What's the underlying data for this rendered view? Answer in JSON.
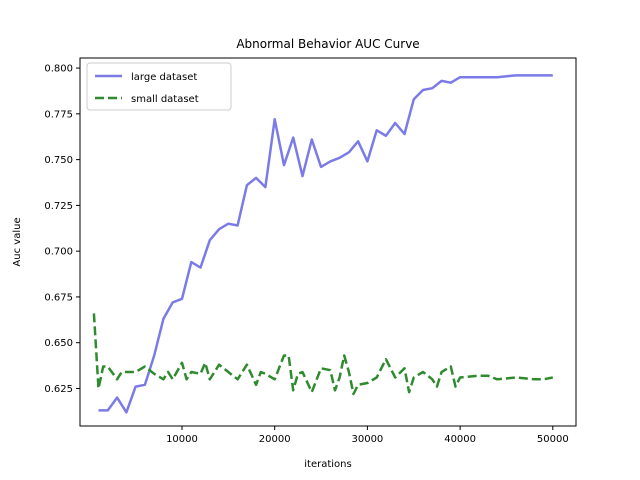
{
  "chart_data": {
    "type": "line",
    "title": "Abnormal Behavior AUC Curve",
    "xlabel": "iterations",
    "ylabel": "Auc value",
    "xlim": [
      -1000,
      52500
    ],
    "ylim": [
      0.6045,
      0.8055
    ],
    "xticks": [
      {
        "value": 10000,
        "label": "10000"
      },
      {
        "value": 20000,
        "label": "20000"
      },
      {
        "value": 30000,
        "label": "30000"
      },
      {
        "value": 40000,
        "label": "40000"
      },
      {
        "value": 50000,
        "label": "50000"
      }
    ],
    "yticks": [
      {
        "value": 0.625,
        "label": "0.625"
      },
      {
        "value": 0.65,
        "label": "0.650"
      },
      {
        "value": 0.675,
        "label": "0.675"
      },
      {
        "value": 0.7,
        "label": "0.700"
      },
      {
        "value": 0.725,
        "label": "0.725"
      },
      {
        "value": 0.75,
        "label": "0.750"
      },
      {
        "value": 0.775,
        "label": "0.775"
      },
      {
        "value": 0.8,
        "label": "0.800"
      }
    ],
    "grid": false,
    "legend_position": "top-left",
    "series": [
      {
        "name": "large dataset",
        "color": "#7b7be8",
        "style": "solid",
        "x": [
          1000,
          2000,
          3000,
          4000,
          5000,
          6000,
          7000,
          8000,
          9000,
          10000,
          11000,
          12000,
          13000,
          14000,
          15000,
          16000,
          17000,
          18000,
          19000,
          20000,
          21000,
          22000,
          23000,
          24000,
          25000,
          26000,
          27000,
          28000,
          29000,
          30000,
          31000,
          32000,
          33000,
          34000,
          35000,
          36000,
          37000,
          38000,
          39000,
          40000,
          42000,
          44000,
          46000,
          48000,
          50000
        ],
        "y": [
          0.613,
          0.613,
          0.62,
          0.612,
          0.626,
          0.627,
          0.643,
          0.663,
          0.672,
          0.674,
          0.694,
          0.691,
          0.706,
          0.712,
          0.715,
          0.714,
          0.736,
          0.74,
          0.735,
          0.772,
          0.747,
          0.762,
          0.741,
          0.761,
          0.746,
          0.749,
          0.751,
          0.754,
          0.76,
          0.749,
          0.766,
          0.763,
          0.77,
          0.764,
          0.783,
          0.788,
          0.789,
          0.793,
          0.792,
          0.795,
          0.795,
          0.795,
          0.796,
          0.796,
          0.796
        ]
      },
      {
        "name": "small dataset",
        "color": "#2e8b2e",
        "style": "dashed",
        "x": [
          500,
          1000,
          1500,
          2000,
          3000,
          3500,
          4000,
          5000,
          6000,
          7000,
          8000,
          8500,
          9000,
          10000,
          10500,
          11000,
          12000,
          12500,
          13000,
          14000,
          15000,
          16000,
          17000,
          18000,
          18500,
          19000,
          20000,
          21000,
          21500,
          22000,
          22500,
          23000,
          24000,
          25000,
          26000,
          26500,
          27000,
          27500,
          28000,
          28500,
          29000,
          30000,
          31000,
          32000,
          33000,
          34000,
          34500,
          35000,
          36000,
          37000,
          37500,
          38000,
          39000,
          39500,
          40000,
          42000,
          43000,
          44000,
          46000,
          48000,
          49000,
          50000
        ],
        "y": [
          0.666,
          0.625,
          0.637,
          0.637,
          0.63,
          0.634,
          0.634,
          0.634,
          0.637,
          0.633,
          0.63,
          0.634,
          0.63,
          0.639,
          0.63,
          0.634,
          0.633,
          0.639,
          0.63,
          0.638,
          0.634,
          0.63,
          0.638,
          0.627,
          0.634,
          0.633,
          0.63,
          0.643,
          0.643,
          0.624,
          0.633,
          0.634,
          0.623,
          0.636,
          0.635,
          0.624,
          0.631,
          0.643,
          0.634,
          0.622,
          0.627,
          0.628,
          0.631,
          0.641,
          0.631,
          0.636,
          0.623,
          0.631,
          0.634,
          0.63,
          0.626,
          0.634,
          0.637,
          0.626,
          0.631,
          0.632,
          0.632,
          0.63,
          0.631,
          0.63,
          0.63,
          0.631
        ]
      }
    ]
  }
}
